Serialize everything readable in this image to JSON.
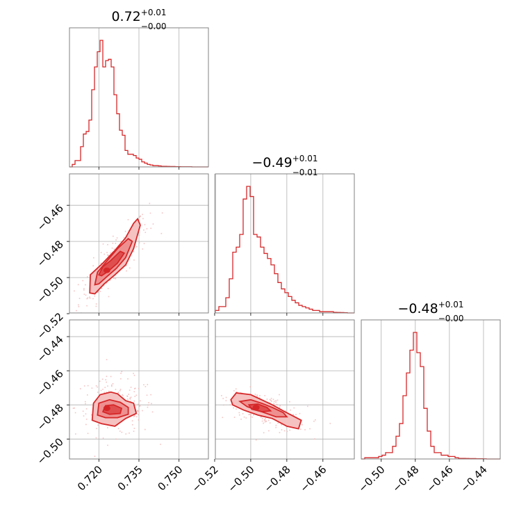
{
  "colors": {
    "series": "#d62728",
    "fill_outer": "#f6c1c1",
    "fill_mid": "#ee9090",
    "fill_inner": "#df4f50",
    "scatter": "#f3b3b3",
    "grid": "#b0b0b0",
    "frame": "#808080"
  },
  "chart_data": {
    "type": "corner",
    "grid": true,
    "parameters": [
      {
        "title": {
          "median": "0.72",
          "plus": "+0.01",
          "minus": "−0.00"
        },
        "range": [
          0.709,
          0.761
        ],
        "ticks": [
          {
            "value": 0.72,
            "label": "0.720"
          },
          {
            "value": 0.735,
            "label": "0.735"
          },
          {
            "value": 0.75,
            "label": "0.750"
          }
        ],
        "histogram": [
          0,
          0.02,
          0.05,
          0.05,
          0.16,
          0.26,
          0.28,
          0.37,
          0.61,
          0.79,
          0.91,
          1.0,
          0.79,
          0.84,
          0.85,
          0.79,
          0.57,
          0.42,
          0.29,
          0.25,
          0.13,
          0.1,
          0.1,
          0.09,
          0.07,
          0.06,
          0.04,
          0.03,
          0.02,
          0.015,
          0.01,
          0.01,
          0.008,
          0.005,
          0.005,
          0.004,
          0.003,
          0.003,
          0.002,
          0.002,
          0.001,
          0.001,
          0.001,
          0.001,
          0.0,
          0.0,
          0.0,
          0.0,
          0.0,
          0.0
        ]
      },
      {
        "title": {
          "median": "−0.49",
          "plus": "+0.01",
          "minus": "−0.01"
        },
        "range": [
          -0.5196,
          -0.4426
        ],
        "ticks": [
          {
            "value": -0.52,
            "label": "−0.52"
          },
          {
            "value": -0.5,
            "label": "−0.50"
          },
          {
            "value": -0.48,
            "label": "−0.48"
          },
          {
            "value": -0.46,
            "label": "−0.46"
          }
        ],
        "histogram": [
          0.02,
          0.05,
          0.05,
          0.12,
          0.27,
          0.48,
          0.52,
          0.62,
          0.9,
          1.0,
          0.92,
          0.62,
          0.6,
          0.52,
          0.47,
          0.43,
          0.38,
          0.31,
          0.24,
          0.19,
          0.16,
          0.13,
          0.1,
          0.08,
          0.06,
          0.05,
          0.04,
          0.03,
          0.02,
          0.02,
          0.01,
          0.01,
          0.01,
          0.01,
          0.005,
          0.004,
          0.003,
          0.002,
          0.0,
          0.0
        ]
      },
      {
        "title": {
          "median": "−0.48",
          "plus": "+0.01",
          "minus": "−0.00"
        },
        "range": [
          -0.5117,
          -0.4302
        ],
        "ticks": [
          {
            "value": -0.5,
            "label": "−0.50"
          },
          {
            "value": -0.48,
            "label": "−0.48"
          },
          {
            "value": -0.46,
            "label": "−0.46"
          },
          {
            "value": -0.44,
            "label": "−0.44"
          }
        ],
        "histogram": [
          0.0,
          0.01,
          0.01,
          0.01,
          0.01,
          0.02,
          0.03,
          0.05,
          0.05,
          0.1,
          0.18,
          0.28,
          0.5,
          0.68,
          0.86,
          1.0,
          0.84,
          0.73,
          0.4,
          0.22,
          0.1,
          0.05,
          0.05,
          0.03,
          0.03,
          0.02,
          0.02,
          0.01,
          0.005,
          0.005,
          0.004,
          0.003,
          0.003,
          0.002,
          0.002,
          0.001,
          0.0,
          0.0,
          0.0,
          0.0
        ]
      }
    ],
    "panels_2d": [
      {
        "x_param": 0,
        "y_param": 1,
        "y_range": [
          -0.5196,
          -0.4426
        ],
        "y_ticks": [
          {
            "value": -0.52,
            "label": "−0.52"
          },
          {
            "value": -0.5,
            "label": "−0.50"
          },
          {
            "value": -0.48,
            "label": "−0.48"
          },
          {
            "value": -0.46,
            "label": "−0.46"
          }
        ],
        "contours": [
          [
            [
              0.7166,
              -0.5085
            ],
            [
              0.7168,
              -0.4985
            ],
            [
              0.7215,
              -0.492
            ],
            [
              0.726,
              -0.485
            ],
            [
              0.73,
              -0.478
            ],
            [
              0.733,
              -0.47
            ],
            [
              0.7345,
              -0.4675
            ],
            [
              0.7355,
              -0.471
            ],
            [
              0.733,
              -0.484
            ],
            [
              0.73,
              -0.493
            ],
            [
              0.726,
              -0.4985
            ],
            [
              0.722,
              -0.5035
            ],
            [
              0.7185,
              -0.509
            ]
          ],
          [
            [
              0.7185,
              -0.504
            ],
            [
              0.7195,
              -0.497
            ],
            [
              0.7235,
              -0.49
            ],
            [
              0.727,
              -0.484
            ],
            [
              0.731,
              -0.4785
            ],
            [
              0.7325,
              -0.48
            ],
            [
              0.73,
              -0.489
            ],
            [
              0.7265,
              -0.495
            ],
            [
              0.723,
              -0.4995
            ],
            [
              0.72,
              -0.5035
            ]
          ],
          [
            [
              0.72,
              -0.4985
            ],
            [
              0.7215,
              -0.494
            ],
            [
              0.7245,
              -0.4905
            ],
            [
              0.728,
              -0.4855
            ],
            [
              0.7295,
              -0.4865
            ],
            [
              0.727,
              -0.492
            ],
            [
              0.7235,
              -0.4965
            ],
            [
              0.721,
              -0.499
            ]
          ]
        ],
        "blob": [
          0.723,
          -0.496
        ],
        "cloud": {
          "center": [
            0.7255,
            -0.4905
          ],
          "spread": [
            0.0065,
            0.012
          ],
          "corr": 0.85,
          "count": 240
        }
      },
      {
        "x_param": 0,
        "y_param": 2,
        "y_range": [
          -0.5117,
          -0.4302
        ],
        "y_ticks": [
          {
            "value": -0.5,
            "label": "−0.50"
          },
          {
            "value": -0.48,
            "label": "−0.48"
          },
          {
            "value": -0.46,
            "label": "−0.46"
          },
          {
            "value": -0.44,
            "label": "−0.44"
          }
        ],
        "contours": [
          [
            [
              0.7175,
              -0.489
            ],
            [
              0.718,
              -0.479
            ],
            [
              0.7205,
              -0.474
            ],
            [
              0.7245,
              -0.4725
            ],
            [
              0.727,
              -0.4735
            ],
            [
              0.73,
              -0.4775
            ],
            [
              0.733,
              -0.479
            ],
            [
              0.734,
              -0.485
            ],
            [
              0.73,
              -0.488
            ],
            [
              0.726,
              -0.4925
            ],
            [
              0.721,
              -0.491
            ]
          ],
          [
            [
              0.7195,
              -0.486
            ],
            [
              0.72,
              -0.479
            ],
            [
              0.724,
              -0.477
            ],
            [
              0.728,
              -0.4785
            ],
            [
              0.731,
              -0.4815
            ],
            [
              0.731,
              -0.4855
            ],
            [
              0.727,
              -0.4875
            ],
            [
              0.7225,
              -0.4875
            ]
          ],
          [
            [
              0.7215,
              -0.484
            ],
            [
              0.7225,
              -0.4805
            ],
            [
              0.7255,
              -0.48
            ],
            [
              0.7285,
              -0.482
            ],
            [
              0.728,
              -0.485
            ],
            [
              0.724,
              -0.4855
            ]
          ]
        ],
        "blob": [
          0.723,
          -0.482
        ],
        "cloud": {
          "center": [
            0.726,
            -0.481
          ],
          "spread": [
            0.0075,
            0.0085
          ],
          "corr": 0.0,
          "count": 200
        }
      },
      {
        "x_param": 1,
        "y_param": 2,
        "y_range": [
          -0.5117,
          -0.4302
        ],
        "y_ticks": [
          {
            "value": -0.5,
            "label": "−0.50"
          },
          {
            "value": -0.48,
            "label": "−0.48"
          },
          {
            "value": -0.46,
            "label": "−0.46"
          },
          {
            "value": -0.44,
            "label": "−0.44"
          }
        ],
        "contours": [
          [
            [
              -0.511,
              -0.477
            ],
            [
              -0.508,
              -0.473
            ],
            [
              -0.5,
              -0.474
            ],
            [
              -0.494,
              -0.477
            ],
            [
              -0.488,
              -0.48
            ],
            [
              -0.482,
              -0.4835
            ],
            [
              -0.4775,
              -0.486
            ],
            [
              -0.472,
              -0.489
            ],
            [
              -0.4735,
              -0.494
            ],
            [
              -0.48,
              -0.4925
            ],
            [
              -0.488,
              -0.488
            ],
            [
              -0.496,
              -0.486
            ],
            [
              -0.504,
              -0.483
            ],
            [
              -0.51,
              -0.48
            ]
          ],
          [
            [
              -0.506,
              -0.478
            ],
            [
              -0.5,
              -0.477
            ],
            [
              -0.494,
              -0.479
            ],
            [
              -0.488,
              -0.4815
            ],
            [
              -0.482,
              -0.4845
            ],
            [
              -0.48,
              -0.487
            ],
            [
              -0.486,
              -0.487
            ],
            [
              -0.494,
              -0.484
            ],
            [
              -0.502,
              -0.481
            ]
          ],
          [
            [
              -0.501,
              -0.48
            ],
            [
              -0.496,
              -0.4795
            ],
            [
              -0.491,
              -0.4815
            ],
            [
              -0.489,
              -0.4835
            ],
            [
              -0.494,
              -0.484
            ],
            [
              -0.4995,
              -0.4825
            ]
          ]
        ],
        "blob": [
          -0.497,
          -0.4815
        ],
        "cloud": {
          "center": [
            -0.491,
            -0.483
          ],
          "spread": [
            0.011,
            0.006
          ],
          "corr": -0.6,
          "count": 220
        }
      }
    ]
  }
}
